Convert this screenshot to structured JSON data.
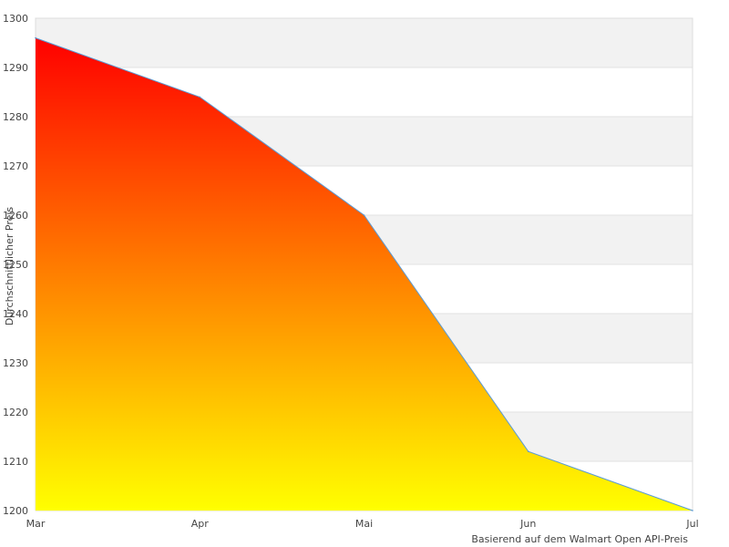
{
  "chart_data": {
    "type": "area",
    "categories": [
      "Mar",
      "Apr",
      "Mai",
      "Jun",
      "Jul"
    ],
    "series": [
      {
        "values": [
          1296,
          1284,
          1260,
          1212,
          1200
        ]
      }
    ],
    "ylabel": "Durchschnittlicher Preis",
    "xlabel": "",
    "ylim": [
      1200,
      1300
    ],
    "yticks": [
      1200,
      1210,
      1220,
      1230,
      1240,
      1250,
      1260,
      1270,
      1280,
      1290,
      1300
    ],
    "grid": true,
    "fill_gradient": {
      "top": "#ff0000",
      "bottom": "#ffff00"
    },
    "line_color": "#5b9bd5",
    "band_color": "#f2f2f2",
    "footnote": "Basierend auf dem Walmart Open API-Preis"
  }
}
